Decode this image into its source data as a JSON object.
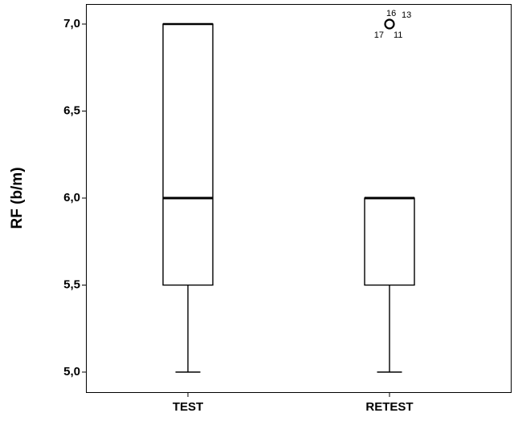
{
  "chart_data": {
    "type": "boxplot",
    "title": "",
    "xlabel": "",
    "ylabel": "RF (b/m)",
    "ylim": [
      4.94,
      7.11
    ],
    "yticks": [
      5.0,
      5.5,
      6.0,
      6.5,
      7.0
    ],
    "ytick_labels": [
      "5,0",
      "5,5",
      "6,0",
      "6,5",
      "7,0"
    ],
    "grid": false,
    "categories": [
      "TEST",
      "RETEST"
    ],
    "boxes": [
      {
        "category": "TEST",
        "min": 5.0,
        "q1": 5.5,
        "median": 6.0,
        "q3": 7.0,
        "max": 7.0,
        "outliers": []
      },
      {
        "category": "RETEST",
        "min": 5.0,
        "q1": 5.5,
        "median": 6.0,
        "q3": 6.0,
        "max": 6.0,
        "outliers": [
          {
            "value": 7.0,
            "labels": [
              "16",
              "13",
              "17",
              "11"
            ]
          }
        ]
      }
    ]
  }
}
